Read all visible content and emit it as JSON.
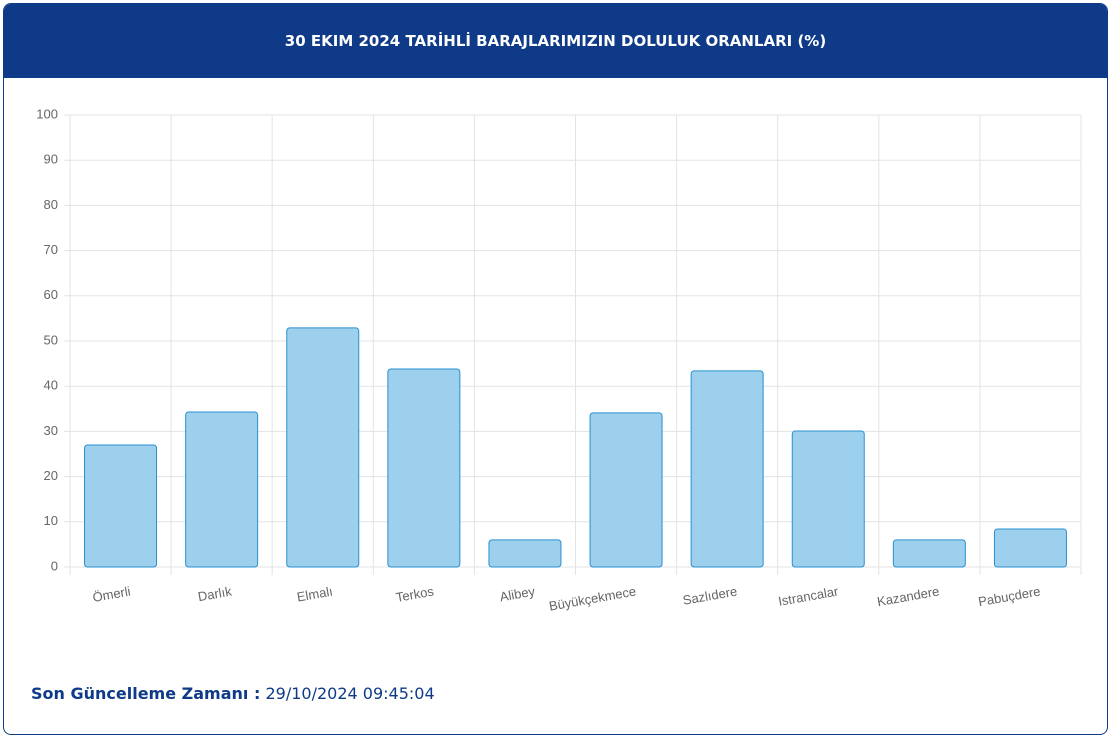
{
  "chart_data": {
    "type": "bar",
    "title": "30 EKIM 2024 TARİHLİ BARAJLARIMIZIN DOLULUK ORANLARI (%)",
    "categories": [
      "Ömerli",
      "Darlık",
      "Elmalı",
      "Terkos",
      "Alibey",
      "Büyükçekmece",
      "Sazlıdere",
      "Istrancalar",
      "Kazandere",
      "Pabuçdere"
    ],
    "values": [
      27.0,
      34.3,
      52.9,
      43.8,
      6.0,
      34.1,
      43.4,
      30.1,
      6.0,
      8.4
    ],
    "color": "#9dd0ec",
    "border_color": "#2a8fd0",
    "ylim": [
      0,
      100
    ],
    "yticks": [
      0,
      10,
      20,
      30,
      40,
      50,
      60,
      70,
      80,
      90,
      100
    ],
    "grid": true
  },
  "footer": {
    "label": "Son Güncelleme Zamanı :",
    "value": "29/10/2024 09:45:04"
  }
}
